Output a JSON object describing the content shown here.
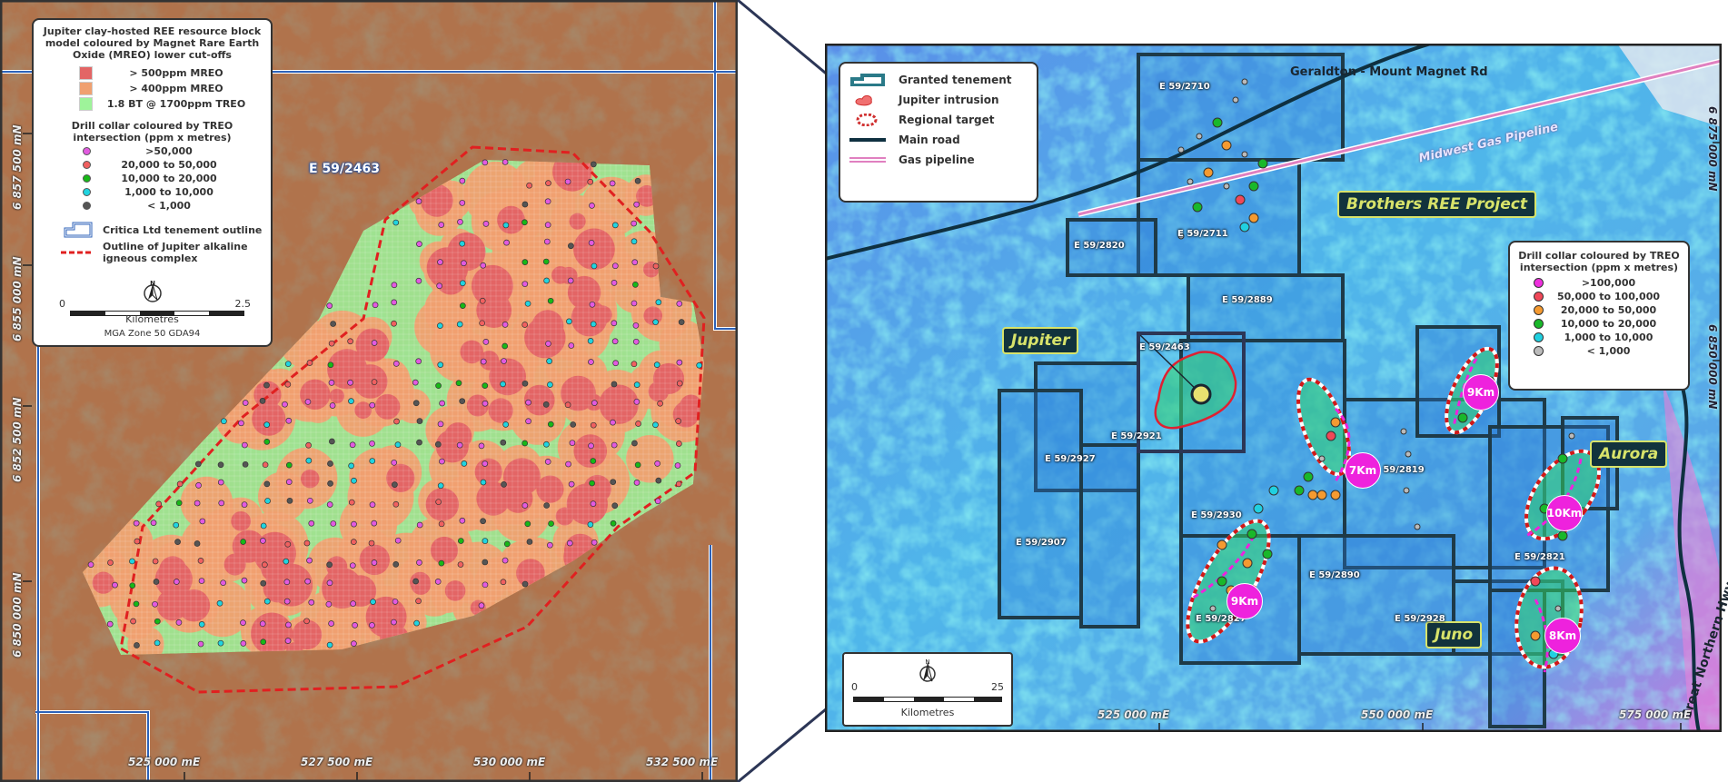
{
  "left_map": {
    "tenement_label": "E 59/2463",
    "legend": {
      "title": "Jupiter clay-hosted REE resource block model coloured by Magnet Rare Earth Oxide (MREO) lower cut-offs",
      "blocks": [
        {
          "label": "> 500ppm MREO",
          "color": "#e36565"
        },
        {
          "label": "> 400ppm MREO",
          "color": "#f0a070"
        },
        {
          "label": "1.8 BT @ 1700ppm TREO",
          "color": "#9ef39a"
        }
      ],
      "collar_title": "Drill collar coloured by TREO intersection (ppm x metres)",
      "collars": [
        {
          "label": ">50,000",
          "color": "#e25ae0"
        },
        {
          "label": "20,000 to 50,000",
          "color": "#f06060"
        },
        {
          "label": "10,000 to 20,000",
          "color": "#17b817"
        },
        {
          "label": "1,000 to 10,000",
          "color": "#20d4e0"
        },
        {
          "label": "< 1,000",
          "color": "#555555"
        }
      ],
      "tenement_outline": "Critica Ltd tenement outline",
      "igneous_outline": "Outline of Jupiter alkaline igneous complex",
      "north": "N",
      "scale_start": "0",
      "scale_end": "2.5",
      "scale_unit": "Kilometres",
      "projection": "MGA Zone 50 GDA94"
    },
    "x_axis": [
      "525 000 mE",
      "527 500 mE",
      "530 000 mE",
      "532 500 mE"
    ],
    "y_axis": [
      "6 857 500 mN",
      "6 855 000 mN",
      "6 852 500 mN",
      "6 850 000 mN"
    ]
  },
  "right_map": {
    "legend": {
      "items": [
        {
          "label": "Granted tenement",
          "icon": "tenement-icon"
        },
        {
          "label": "Jupiter intrusion",
          "icon": "intrusion-icon"
        },
        {
          "label": "Regional target",
          "icon": "target-icon"
        },
        {
          "label": "Main road",
          "icon": "road-line-icon",
          "color": "#0f3040"
        },
        {
          "label": "Gas pipeline",
          "icon": "pipeline-line-icon",
          "color": "#e080c0"
        }
      ]
    },
    "collar_legend": {
      "title": "Drill collar coloured by TREO intersection (ppm x metres)",
      "items": [
        {
          "label": ">100,000",
          "color": "#ee30dd"
        },
        {
          "label": "50,000 to 100,000",
          "color": "#f04858"
        },
        {
          "label": "20,000 to 50,000",
          "color": "#f59a30"
        },
        {
          "label": "10,000 to 20,000",
          "color": "#19b82a"
        },
        {
          "label": "1,000 to 10,000",
          "color": "#20d0e0"
        },
        {
          "label": "< 1,000",
          "color": "#bbbbbb"
        }
      ]
    },
    "road_label": "Geraldton - Mount Magnet Rd",
    "pipeline_label": "Midwest Gas Pipeline",
    "highway_label": "Great Northern Hwy",
    "project_label": "Brothers REE Project",
    "prospects": [
      "Jupiter",
      "Aurora",
      "Juno"
    ],
    "tenements": [
      "E 59/2710",
      "E 59/2711",
      "E 59/2820",
      "E 59/2889",
      "E 59/2463",
      "E 59/2921",
      "E 59/2927",
      "E 59/2907",
      "E 59/2930",
      "E 59/2819",
      "E 59/2890",
      "E 59/2827",
      "E 59/2928",
      "E 59/2821"
    ],
    "distances": [
      "7Km",
      "9Km",
      "10Km",
      "9Km",
      "8Km"
    ],
    "scale": {
      "start": "0",
      "end": "25",
      "unit": "Kilometres",
      "north": "N"
    },
    "x_axis": [
      "525 000 mE",
      "550 000 mE",
      "575 000 mE"
    ],
    "y_axis": [
      "6 875 000 mN",
      "6 850 000 mN"
    ]
  }
}
